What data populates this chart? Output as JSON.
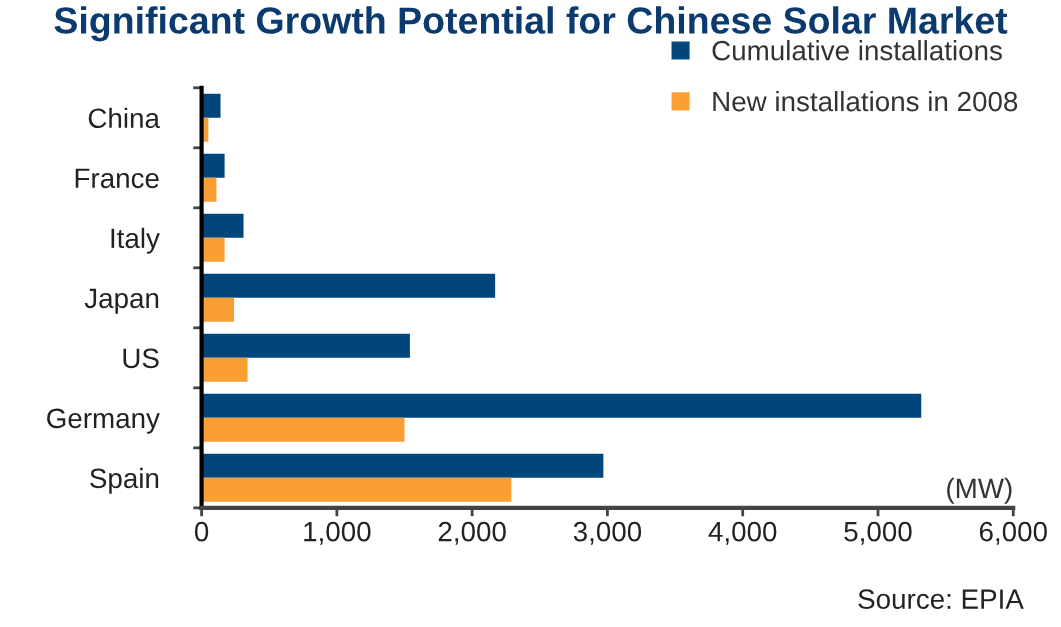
{
  "chart_data": {
    "type": "bar",
    "orientation": "horizontal",
    "title": "Significant Growth Potential for Chinese Solar Market",
    "categories": [
      "China",
      "France",
      "Italy",
      "Japan",
      "US",
      "Germany",
      "Spain"
    ],
    "series": [
      {
        "name": "Cumulative installations",
        "color": "#00457c",
        "values": [
          140,
          170,
          310,
          2170,
          1540,
          5320,
          2970
        ]
      },
      {
        "name": "New installations in 2008",
        "color": "#f99f33",
        "values": [
          50,
          110,
          170,
          240,
          340,
          1500,
          2290
        ]
      }
    ],
    "xlim": [
      0,
      6000
    ],
    "xticks": [
      {
        "value": 0,
        "label": "0"
      },
      {
        "value": 1000,
        "label": "1,000"
      },
      {
        "value": 2000,
        "label": "2,000"
      },
      {
        "value": 3000,
        "label": "3,000"
      },
      {
        "value": 4000,
        "label": "4,000"
      },
      {
        "value": 5000,
        "label": "5,000"
      },
      {
        "value": 6000,
        "label": "6,000"
      }
    ],
    "legend": "top right",
    "grid": false,
    "annotations": [
      "(MW)",
      "Source: EPIA"
    ]
  }
}
